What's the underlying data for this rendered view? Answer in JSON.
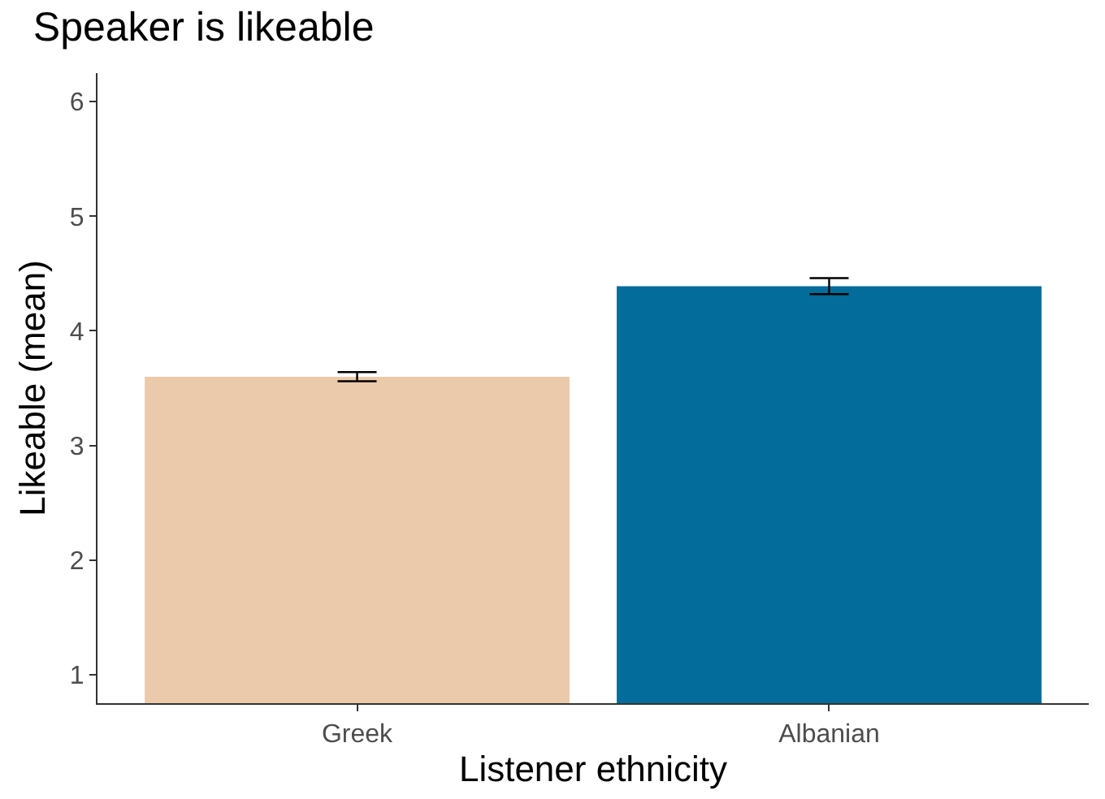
{
  "chart_data": {
    "type": "bar",
    "title": "Speaker is likeable",
    "xlabel": "Listener ethnicity",
    "ylabel": "Likeable (mean)",
    "categories": [
      "Greek",
      "Albanian"
    ],
    "values": [
      3.6,
      4.39
    ],
    "colors": [
      "#ebcaab",
      "#046c9a"
    ],
    "errors": [
      [
        3.56,
        3.64
      ],
      [
        4.32,
        4.46
      ]
    ],
    "ylim": [
      0.75,
      6.25
    ],
    "yticks": [
      1,
      2,
      3,
      4,
      5,
      6
    ]
  }
}
